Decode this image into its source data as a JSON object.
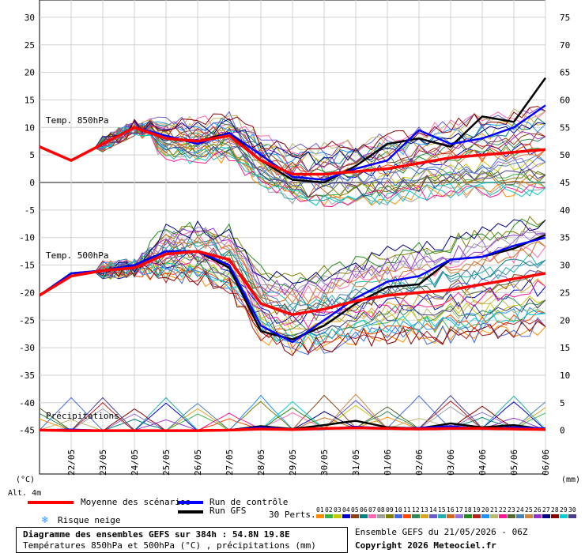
{
  "chart_data": {
    "type": "line",
    "title": "Diagramme des ensembles GEFS sur 384h : 54.8N 19.8E",
    "subtitle": "Températures 850hPa et 500hPa (°C) , précipitations (mm)",
    "left_axis": {
      "label": "(°C)",
      "ticks": [
        30,
        25,
        20,
        15,
        10,
        5,
        0,
        -5,
        -10,
        -15,
        -20,
        -25,
        -30,
        -35,
        -40,
        -45
      ],
      "range": [
        -50,
        33
      ]
    },
    "right_axis": {
      "label": "(mm)",
      "ticks": [
        75,
        70,
        65,
        60,
        55,
        50,
        45,
        40,
        35,
        30,
        25,
        20,
        15,
        10,
        5,
        0
      ]
    },
    "x_labels": [
      "22/05",
      "23/05",
      "24/05",
      "25/05",
      "26/05",
      "27/05",
      "28/05",
      "29/05",
      "30/05",
      "31/05",
      "01/06",
      "02/06",
      "03/06",
      "04/06",
      "05/06",
      "06/06"
    ],
    "panel_labels": {
      "t850": "Temp. 850hPa",
      "t500": "Temp. 500hPa",
      "precip": "Précipitations"
    },
    "altitude": "Alt. 4m",
    "series": [
      {
        "name": "Moyenne des scénarios",
        "color": "#ff0000",
        "t850": [
          6.5,
          4.0,
          7.0,
          10.0,
          8.0,
          7.5,
          8.5,
          4.0,
          1.5,
          1.5,
          2.0,
          2.5,
          3.5,
          4.5,
          5.0,
          5.5,
          6.0
        ],
        "t500": [
          -20.5,
          -17.0,
          -16.0,
          -15.5,
          -13.0,
          -12.5,
          -14.0,
          -22.0,
          -24.0,
          -23.0,
          -21.5,
          -20.5,
          -20.0,
          -19.5,
          -18.5,
          -17.5,
          -16.5
        ],
        "precip": [
          0.3,
          0.2,
          0.2,
          0.2,
          0.2,
          0.2,
          0.3,
          0.5,
          0.4,
          0.6,
          0.7,
          0.6,
          0.5,
          0.6,
          0.6,
          0.5,
          0.4
        ]
      },
      {
        "name": "Run de contrôle",
        "color": "#0000ff",
        "t850": [
          6.5,
          4.0,
          7.0,
          10.0,
          8.5,
          7.0,
          9.0,
          5.0,
          1.0,
          0.5,
          2.5,
          4.0,
          9.5,
          7.0,
          8.0,
          10.0,
          14.0
        ],
        "t500": [
          -20.5,
          -16.5,
          -16.0,
          -15.0,
          -12.5,
          -12.5,
          -15.0,
          -26.0,
          -29.0,
          -25.0,
          -21.0,
          -18.0,
          -17.0,
          -14.0,
          -13.5,
          -11.5,
          -10.0
        ],
        "precip": [
          0.3,
          0.4,
          0.2,
          0.2,
          0.2,
          0.2,
          0.3,
          0.8,
          0.4,
          0.5,
          0.9,
          0.6,
          0.7,
          1.0,
          0.5,
          0.8,
          0.6
        ]
      },
      {
        "name": "Run GFS",
        "color": "#000000",
        "t850": [
          6.5,
          4.0,
          7.0,
          10.0,
          8.0,
          7.5,
          9.0,
          4.0,
          0.5,
          0.0,
          3.0,
          7.0,
          8.0,
          6.5,
          12.0,
          11.0,
          19.0
        ],
        "t500": [
          -20.5,
          -16.5,
          -16.0,
          -15.0,
          -12.5,
          -12.5,
          -15.5,
          -27.0,
          -28.5,
          -26.0,
          -22.0,
          -19.0,
          -18.5,
          -14.0,
          -13.5,
          -12.0,
          -9.5
        ],
        "precip": [
          0.3,
          0.2,
          0.2,
          0.2,
          0.2,
          0.2,
          0.3,
          1.0,
          0.5,
          1.2,
          2.0,
          0.8,
          0.6,
          1.5,
          0.8,
          1.2,
          0.4
        ]
      }
    ],
    "perturbations_label": "30 Perts.",
    "perturbation_ids": [
      "01",
      "02",
      "03",
      "04",
      "05",
      "06",
      "07",
      "08",
      "09",
      "10",
      "11",
      "12",
      "13",
      "14",
      "15",
      "16",
      "17",
      "18",
      "19",
      "20",
      "21",
      "22",
      "23",
      "24",
      "25",
      "26",
      "27",
      "28",
      "29",
      "30"
    ],
    "perturbation_colors": [
      "#ff8c00",
      "#3cb44b",
      "#c8c800",
      "#0000cd",
      "#8b4513",
      "#008080",
      "#ff69b4",
      "#a0a0a0",
      "#808000",
      "#4169e1",
      "#ff4500",
      "#2e8b57",
      "#daa520",
      "#6a5acd",
      "#20b2aa",
      "#d2691e",
      "#9370db",
      "#228b22",
      "#b22222",
      "#1e90ff",
      "#bdb76b",
      "#ff1493",
      "#556b2f",
      "#4682b4",
      "#cd853f",
      "#9932cc",
      "#000080",
      "#8b0000",
      "#00ced1",
      "#483d8b"
    ],
    "grid": true
  },
  "legend": {
    "mean": "Moyenne des scénarios",
    "control": "Run de contrôle",
    "gfs": "Run GFS",
    "snow_risk": "Risque neige",
    "perts": "30 Perts."
  },
  "footer": {
    "title": "Diagramme des ensembles GEFS sur 384h : 54.8N 19.8E",
    "subtitle": "Températures 850hPa et 500hPa (°C) , précipitations (mm)",
    "run": "Ensemble GEFS du 21/05/2026 - 06Z",
    "copyright": "Copyright 2026 Meteociel.fr"
  }
}
